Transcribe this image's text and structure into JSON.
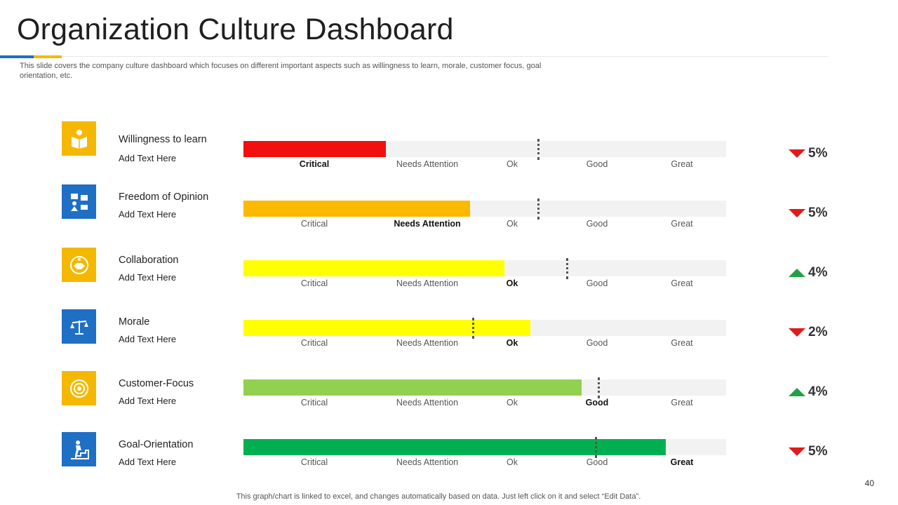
{
  "title": "Organization Culture Dashboard",
  "subtitle": "This slide covers the company culture dashboard which focuses on different important aspects such as willingness to learn, morale, customer focus, goal orientation, etc.",
  "footnote": "This graph/chart is linked to excel,  and changes automatically based on data. Just left click on it and select “Edit Data”.",
  "page_number": "40",
  "colors": {
    "accent_blue": "#1f6fc4",
    "accent_yellow": "#f5b800",
    "up": "#22a045",
    "down": "#e01b1b"
  },
  "chart_data": {
    "type": "bar",
    "scale_labels": [
      "Critical",
      "Needs Attention",
      "Ok",
      "Good",
      "Great"
    ],
    "xlim": [
      0,
      100
    ],
    "rows": [
      {
        "label": "Willingness to learn",
        "sub": "Add Text Here",
        "value": 29.5,
        "marker": 61,
        "active": 0,
        "color": "#f20f0f",
        "trend": "down",
        "change": "5%",
        "icon": "reading-person-icon",
        "icon_bg": "#f5b800"
      },
      {
        "label": "Freedom of Opinion",
        "sub": "Add Text Here",
        "value": 47,
        "marker": 61,
        "active": 1,
        "color": "#fbb900",
        "trend": "down",
        "change": "5%",
        "icon": "communication-icon",
        "icon_bg": "#1f6fc4"
      },
      {
        "label": "Collaboration",
        "sub": "Add Text Here",
        "value": 54,
        "marker": 67,
        "active": 2,
        "color": "#ffff00",
        "trend": "up",
        "change": "4%",
        "icon": "handshake-icon",
        "icon_bg": "#f5b800"
      },
      {
        "label": "Morale",
        "sub": "Add Text Here",
        "value": 59.5,
        "marker": 47.5,
        "active": 2,
        "color": "#ffff00",
        "trend": "down",
        "change": "2%",
        "icon": "balance-scale-icon",
        "icon_bg": "#1f6fc4"
      },
      {
        "label": "Customer-Focus",
        "sub": "Add Text Here",
        "value": 70,
        "marker": 73.5,
        "active": 3,
        "color": "#92d050",
        "trend": "up",
        "change": "4%",
        "icon": "target-icon",
        "icon_bg": "#f5b800"
      },
      {
        "label": "Goal-Orientation",
        "sub": "Add Text Here",
        "value": 87.5,
        "marker": 73,
        "active": 4,
        "color": "#00b050",
        "trend": "down",
        "change": "5%",
        "icon": "stairs-climb-icon",
        "icon_bg": "#1f6fc4"
      }
    ]
  }
}
